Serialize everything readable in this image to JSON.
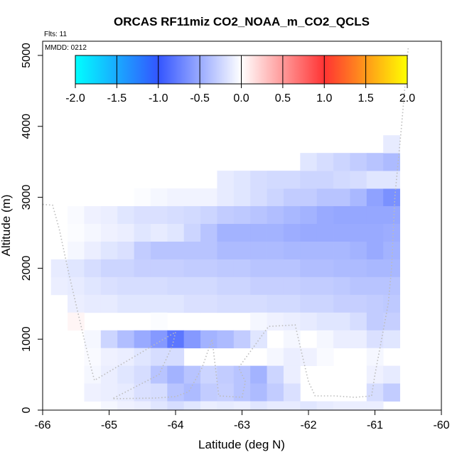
{
  "chart_data": {
    "type": "heatmap",
    "title": "ORCAS RF11miz CO2_NOAA_m_CO2_QCLS",
    "xlabel": "Latitude (deg N)",
    "ylabel": "Altitude (m)",
    "xlim": [
      -66,
      -60
    ],
    "ylim": [
      0,
      5200
    ],
    "x_ticks": [
      "-66",
      "-65",
      "-64",
      "-63",
      "-62",
      "-61",
      "-60"
    ],
    "y_ticks": [
      "0",
      "1000",
      "2000",
      "3000",
      "4000",
      "5000"
    ],
    "annotations": [
      "Flts: 11",
      "MMDD: 0212"
    ],
    "colorbar": {
      "ticks": [
        "-2.0",
        "-1.5",
        "-1.0",
        "-0.5",
        "0.0",
        "0.5",
        "1.0",
        "1.5",
        "2.0"
      ],
      "range": [
        -2,
        2
      ],
      "colors": [
        "#00ffff",
        "#3355ff",
        "#ffffff",
        "#ff3333",
        "#ffff00"
      ]
    },
    "cell_size": {
      "lat": 0.25,
      "alt": 250
    },
    "cells": [
      [
        -64.5,
        3000,
        -0.02
      ],
      [
        -64.25,
        3000,
        -0.05
      ],
      [
        -64.0,
        3000,
        -0.07
      ],
      [
        -63.75,
        3000,
        -0.07
      ],
      [
        -63.5,
        3000,
        -0.07
      ],
      [
        -63.25,
        3000,
        -0.12
      ],
      [
        -63.0,
        3000,
        -0.15
      ],
      [
        -62.75,
        3000,
        -0.2
      ],
      [
        -62.5,
        3000,
        -0.25
      ],
      [
        -62.25,
        3000,
        -0.3
      ],
      [
        -62.0,
        3000,
        -0.3
      ],
      [
        -61.75,
        3000,
        -0.35
      ],
      [
        -61.5,
        3000,
        -0.35
      ],
      [
        -61.25,
        3000,
        -0.42
      ],
      [
        -61.0,
        3000,
        -0.55
      ],
      [
        -60.75,
        3000,
        -0.65
      ],
      [
        -63.25,
        3250,
        -0.12
      ],
      [
        -63.0,
        3250,
        -0.15
      ],
      [
        -62.75,
        3250,
        -0.2
      ],
      [
        -62.5,
        3250,
        -0.22
      ],
      [
        -62.25,
        3250,
        -0.22
      ],
      [
        -62.0,
        3250,
        -0.25
      ],
      [
        -61.75,
        3250,
        -0.25
      ],
      [
        -61.5,
        3250,
        -0.22
      ],
      [
        -61.25,
        3250,
        -0.2
      ],
      [
        -61.0,
        3250,
        -0.15
      ],
      [
        -60.75,
        3250,
        -0.15
      ],
      [
        -62.0,
        3500,
        -0.15
      ],
      [
        -61.75,
        3500,
        -0.2
      ],
      [
        -61.5,
        3500,
        -0.25
      ],
      [
        -61.25,
        3500,
        -0.3
      ],
      [
        -61.0,
        3500,
        -0.35
      ],
      [
        -60.75,
        3500,
        -0.4
      ],
      [
        -60.75,
        3750,
        -0.12
      ],
      [
        -65.5,
        2750,
        -0.03
      ],
      [
        -65.25,
        2750,
        -0.08
      ],
      [
        -65.0,
        2750,
        -0.1
      ],
      [
        -64.75,
        2750,
        -0.15
      ],
      [
        -64.5,
        2750,
        -0.18
      ],
      [
        -64.25,
        2750,
        -0.18
      ],
      [
        -64.0,
        2750,
        -0.2
      ],
      [
        -63.75,
        2750,
        -0.22
      ],
      [
        -63.5,
        2750,
        -0.25
      ],
      [
        -63.25,
        2750,
        -0.3
      ],
      [
        -63.0,
        2750,
        -0.32
      ],
      [
        -62.75,
        2750,
        -0.35
      ],
      [
        -62.5,
        2750,
        -0.38
      ],
      [
        -62.25,
        2750,
        -0.42
      ],
      [
        -62.0,
        2750,
        -0.45
      ],
      [
        -61.75,
        2750,
        -0.5
      ],
      [
        -61.5,
        2750,
        -0.52
      ],
      [
        -61.25,
        2750,
        -0.52
      ],
      [
        -61.0,
        2750,
        -0.52
      ],
      [
        -60.75,
        2750,
        -0.52
      ],
      [
        -65.5,
        2500,
        -0.02
      ],
      [
        -65.25,
        2500,
        -0.05
      ],
      [
        -65.0,
        2500,
        -0.08
      ],
      [
        -64.75,
        2500,
        -0.1
      ],
      [
        -64.5,
        2500,
        -0.15
      ],
      [
        -64.25,
        2500,
        -0.12
      ],
      [
        -64.0,
        2500,
        -0.15
      ],
      [
        -63.75,
        2500,
        -0.25
      ],
      [
        -63.5,
        2500,
        -0.35
      ],
      [
        -63.25,
        2500,
        -0.45
      ],
      [
        -63.0,
        2500,
        -0.45
      ],
      [
        -62.75,
        2500,
        -0.45
      ],
      [
        -62.5,
        2500,
        -0.45
      ],
      [
        -62.25,
        2500,
        -0.48
      ],
      [
        -62.0,
        2500,
        -0.5
      ],
      [
        -61.75,
        2500,
        -0.5
      ],
      [
        -61.5,
        2500,
        -0.5
      ],
      [
        -61.25,
        2500,
        -0.5
      ],
      [
        -61.0,
        2500,
        -0.5
      ],
      [
        -60.75,
        2500,
        -0.48
      ],
      [
        -65.5,
        2250,
        -0.05
      ],
      [
        -65.25,
        2250,
        -0.1
      ],
      [
        -65.0,
        2250,
        -0.15
      ],
      [
        -64.75,
        2250,
        -0.18
      ],
      [
        -64.5,
        2250,
        -0.3
      ],
      [
        -64.25,
        2250,
        -0.35
      ],
      [
        -64.0,
        2250,
        -0.35
      ],
      [
        -63.75,
        2250,
        -0.35
      ],
      [
        -63.5,
        2250,
        -0.35
      ],
      [
        -63.25,
        2250,
        -0.4
      ],
      [
        -63.0,
        2250,
        -0.4
      ],
      [
        -62.75,
        2250,
        -0.4
      ],
      [
        -62.5,
        2250,
        -0.4
      ],
      [
        -62.25,
        2250,
        -0.42
      ],
      [
        -62.0,
        2250,
        -0.42
      ],
      [
        -61.75,
        2250,
        -0.42
      ],
      [
        -61.5,
        2250,
        -0.42
      ],
      [
        -61.25,
        2250,
        -0.45
      ],
      [
        -61.0,
        2250,
        -0.5
      ],
      [
        -60.75,
        2250,
        -0.45
      ],
      [
        -65.75,
        2000,
        -0.12
      ],
      [
        -65.5,
        2000,
        -0.15
      ],
      [
        -65.25,
        2000,
        -0.2
      ],
      [
        -65.0,
        2000,
        -0.25
      ],
      [
        -64.75,
        2000,
        -0.25
      ],
      [
        -64.5,
        2000,
        -0.28
      ],
      [
        -64.25,
        2000,
        -0.28
      ],
      [
        -64.0,
        2000,
        -0.28
      ],
      [
        -63.75,
        2000,
        -0.3
      ],
      [
        -63.5,
        2000,
        -0.3
      ],
      [
        -63.25,
        2000,
        -0.32
      ],
      [
        -63.0,
        2000,
        -0.32
      ],
      [
        -62.75,
        2000,
        -0.35
      ],
      [
        -62.5,
        2000,
        -0.35
      ],
      [
        -62.25,
        2000,
        -0.35
      ],
      [
        -62.0,
        2000,
        -0.38
      ],
      [
        -61.75,
        2000,
        -0.38
      ],
      [
        -61.5,
        2000,
        -0.4
      ],
      [
        -61.25,
        2000,
        -0.4
      ],
      [
        -61.0,
        2000,
        -0.42
      ],
      [
        -60.75,
        2000,
        -0.42
      ],
      [
        -65.75,
        1750,
        -0.1
      ],
      [
        -65.5,
        1750,
        -0.12
      ],
      [
        -65.25,
        1750,
        -0.15
      ],
      [
        -65.0,
        1750,
        -0.18
      ],
      [
        -64.75,
        1750,
        -0.2
      ],
      [
        -64.5,
        1750,
        -0.2
      ],
      [
        -64.25,
        1750,
        -0.2
      ],
      [
        -64.0,
        1750,
        -0.22
      ],
      [
        -63.75,
        1750,
        -0.22
      ],
      [
        -63.5,
        1750,
        -0.22
      ],
      [
        -63.25,
        1750,
        -0.25
      ],
      [
        -63.0,
        1750,
        -0.25
      ],
      [
        -62.75,
        1750,
        -0.28
      ],
      [
        -62.5,
        1750,
        -0.28
      ],
      [
        -62.25,
        1750,
        -0.28
      ],
      [
        -62.0,
        1750,
        -0.3
      ],
      [
        -61.75,
        1750,
        -0.3
      ],
      [
        -61.5,
        1750,
        -0.32
      ],
      [
        -61.25,
        1750,
        -0.35
      ],
      [
        -61.0,
        1750,
        -0.35
      ],
      [
        -60.75,
        1750,
        -0.35
      ],
      [
        -65.5,
        1500,
        -0.1
      ],
      [
        -65.25,
        1500,
        -0.12
      ],
      [
        -65.0,
        1500,
        -0.12
      ],
      [
        -64.75,
        1500,
        -0.15
      ],
      [
        -64.5,
        1500,
        -0.15
      ],
      [
        -64.25,
        1500,
        -0.15
      ],
      [
        -64.0,
        1500,
        -0.15
      ],
      [
        -63.75,
        1500,
        -0.18
      ],
      [
        -63.5,
        1500,
        -0.18
      ],
      [
        -63.25,
        1500,
        -0.2
      ],
      [
        -63.0,
        1500,
        -0.2
      ],
      [
        -62.75,
        1500,
        -0.2
      ],
      [
        -62.5,
        1500,
        -0.22
      ],
      [
        -62.25,
        1500,
        -0.22
      ],
      [
        -62.0,
        1500,
        -0.25
      ],
      [
        -61.75,
        1500,
        -0.25
      ],
      [
        -61.5,
        1500,
        -0.28
      ],
      [
        -61.25,
        1500,
        -0.28
      ],
      [
        -61.0,
        1500,
        -0.3
      ],
      [
        -60.75,
        1500,
        -0.32
      ],
      [
        -65.5,
        1250,
        0.05
      ],
      [
        -64.25,
        1250,
        -0.02
      ],
      [
        -62.75,
        1250,
        -0.05
      ],
      [
        -62.5,
        1250,
        -0.08
      ],
      [
        -62.25,
        1250,
        -0.1
      ],
      [
        -62.0,
        1250,
        -0.12
      ],
      [
        -61.75,
        1250,
        -0.15
      ],
      [
        -61.5,
        1250,
        -0.15
      ],
      [
        -61.25,
        1250,
        -0.2
      ],
      [
        -61.0,
        1250,
        -0.3
      ],
      [
        -60.75,
        1250,
        -0.28
      ],
      [
        -65.25,
        1000,
        -0.05
      ],
      [
        -65.0,
        1000,
        -0.25
      ],
      [
        -64.75,
        1000,
        -0.38
      ],
      [
        -64.5,
        1000,
        -0.5
      ],
      [
        -64.25,
        1000,
        -0.6
      ],
      [
        -64.0,
        1000,
        -0.8
      ],
      [
        -63.75,
        1000,
        -0.6
      ],
      [
        -63.5,
        1000,
        -0.45
      ],
      [
        -63.25,
        1000,
        -0.4
      ],
      [
        -63.0,
        1000,
        -0.3
      ],
      [
        -62.75,
        1000,
        -0.15
      ],
      [
        -62.25,
        1000,
        -0.05
      ],
      [
        -61.75,
        1000,
        -0.05
      ],
      [
        -61.5,
        1000,
        -0.1
      ],
      [
        -61.25,
        1000,
        -0.1
      ],
      [
        -61.0,
        1000,
        -0.18
      ],
      [
        -60.75,
        1000,
        -0.15
      ],
      [
        -65.25,
        750,
        -0.03
      ],
      [
        -65.0,
        750,
        -0.08
      ],
      [
        -64.75,
        750,
        -0.1
      ],
      [
        -64.5,
        750,
        -0.15
      ],
      [
        -64.25,
        750,
        -0.2
      ],
      [
        -64.0,
        750,
        -0.2
      ],
      [
        -62.5,
        750,
        -0.05
      ],
      [
        -62.25,
        750,
        -0.1
      ],
      [
        -62.0,
        750,
        -0.08
      ],
      [
        -61.75,
        750,
        -0.03
      ],
      [
        -61.0,
        750,
        -0.05
      ],
      [
        -65.25,
        500,
        -0.05
      ],
      [
        -65.0,
        500,
        -0.1
      ],
      [
        -64.75,
        500,
        -0.15
      ],
      [
        -64.5,
        500,
        -0.2
      ],
      [
        -64.25,
        500,
        -0.35
      ],
      [
        -64.0,
        500,
        -0.45
      ],
      [
        -63.75,
        500,
        -0.35
      ],
      [
        -63.5,
        500,
        -0.25
      ],
      [
        -63.25,
        500,
        -0.3
      ],
      [
        -63.0,
        500,
        -0.35
      ],
      [
        -62.75,
        500,
        -0.45
      ],
      [
        -62.5,
        500,
        -0.25
      ],
      [
        -62.25,
        500,
        -0.1
      ],
      [
        -61.0,
        500,
        -0.08
      ],
      [
        -60.75,
        500,
        -0.12
      ],
      [
        -65.25,
        250,
        -0.08
      ],
      [
        -65.0,
        250,
        -0.1
      ],
      [
        -64.75,
        250,
        -0.12
      ],
      [
        -64.5,
        250,
        -0.18
      ],
      [
        -64.25,
        250,
        -0.2
      ],
      [
        -64.0,
        250,
        -0.35
      ],
      [
        -63.75,
        250,
        -0.4
      ],
      [
        -63.5,
        250,
        -0.3
      ],
      [
        -63.25,
        250,
        -0.28
      ],
      [
        -63.0,
        250,
        -0.35
      ],
      [
        -62.75,
        250,
        -0.4
      ],
      [
        -62.5,
        250,
        -0.3
      ],
      [
        -62.25,
        250,
        -0.18
      ],
      [
        -61.0,
        250,
        -0.2
      ],
      [
        -60.75,
        250,
        -0.3
      ],
      [
        -65.0,
        0,
        -0.05
      ],
      [
        -64.75,
        0,
        -0.08
      ],
      [
        -64.5,
        0,
        -0.1
      ],
      [
        -64.25,
        0,
        -0.15
      ],
      [
        -64.0,
        0,
        -0.2
      ],
      [
        -63.75,
        0,
        -0.15
      ],
      [
        -63.5,
        0,
        -0.1
      ],
      [
        -63.25,
        0,
        -0.12
      ],
      [
        -63.0,
        0,
        -0.1
      ],
      [
        -62.75,
        0,
        -0.15
      ],
      [
        -62.5,
        0,
        -0.12
      ],
      [
        -62.25,
        0,
        -0.12
      ],
      [
        -62.0,
        0,
        -0.15
      ],
      [
        -61.75,
        0,
        -0.12
      ],
      [
        -61.5,
        0,
        -0.1
      ],
      [
        -61.25,
        0,
        -0.1
      ],
      [
        -61.0,
        0,
        -0.1
      ]
    ],
    "flight_track": [
      [
        -66.0,
        2900
      ],
      [
        -65.85,
        2890
      ],
      [
        -65.75,
        2550
      ],
      [
        -65.6,
        1900
      ],
      [
        -65.45,
        1300
      ],
      [
        -65.3,
        700
      ],
      [
        -65.22,
        420
      ],
      [
        -64.0,
        1100
      ],
      [
        -64.05,
        900
      ],
      [
        -64.15,
        700
      ],
      [
        -64.25,
        500
      ],
      [
        -64.95,
        160
      ],
      [
        -64.3,
        170
      ],
      [
        -64.0,
        190
      ],
      [
        -63.8,
        260
      ],
      [
        -63.6,
        600
      ],
      [
        -63.45,
        1000
      ],
      [
        -63.35,
        200
      ],
      [
        -63.0,
        180
      ],
      [
        -62.95,
        400
      ],
      [
        -63.05,
        600
      ],
      [
        -62.6,
        1180
      ],
      [
        -62.2,
        1200
      ],
      [
        -62.1,
        800
      ],
      [
        -62.0,
        400
      ],
      [
        -61.9,
        200
      ],
      [
        -61.6,
        200
      ],
      [
        -61.3,
        180
      ],
      [
        -61.05,
        200
      ],
      [
        -61.0,
        500
      ],
      [
        -60.9,
        1000
      ],
      [
        -60.8,
        1500
      ],
      [
        -60.75,
        2000
      ],
      [
        -60.7,
        3000
      ],
      [
        -60.6,
        4000
      ],
      [
        -60.5,
        5100
      ]
    ]
  }
}
